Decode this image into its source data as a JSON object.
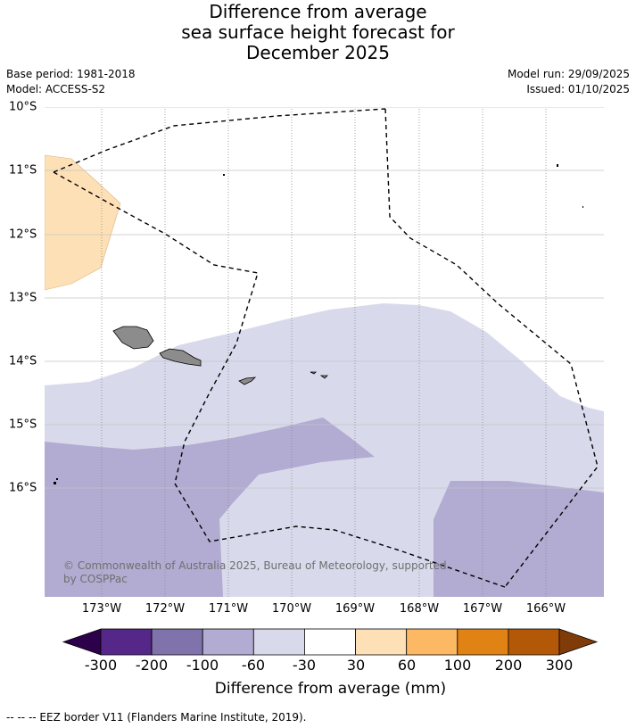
{
  "title": {
    "line1": "Difference from average",
    "line2": "sea surface height forecast for",
    "line3": "December 2025"
  },
  "meta": {
    "base_period": "Base period: 1981-2018",
    "model": "Model: ACCESS-S2",
    "model_run": "Model run: 29/09/2025",
    "issued": "Issued: 01/10/2025"
  },
  "axes": {
    "lon_labels": [
      "173°W",
      "172°W",
      "171°W",
      "170°W",
      "169°W",
      "168°W",
      "167°W",
      "166°W"
    ],
    "lat_labels": [
      "10°S",
      "11°S",
      "12°S",
      "13°S",
      "14°S",
      "15°S",
      "16°S"
    ]
  },
  "credit": "© Commonwealth of Australia 2025, Bureau of Meteorology, supported by COSPPac",
  "colorbar": {
    "label": "Difference from average (mm)",
    "ticks": [
      "-300",
      "-200",
      "-100",
      "-60",
      "-30",
      "30",
      "60",
      "100",
      "200",
      "300"
    ],
    "colors": {
      "below_min": "#2d004b",
      "bin_-300_-200": "#542788",
      "bin_-200_-100": "#8073ac",
      "bin_-100_-60": "#b2abd2",
      "bin_-60_-30": "#d8daeb",
      "bin_-30_30": "#ffffff",
      "bin_30_60": "#fee0b6",
      "bin_60_100": "#fdb863",
      "bin_100_200": "#e08214",
      "bin_200_300": "#b35806",
      "above_max": "#7f3b08"
    }
  },
  "legend": {
    "eez": "--  --  -- EEZ border V11 (Flanders Marine Institute, 2019)."
  }
}
